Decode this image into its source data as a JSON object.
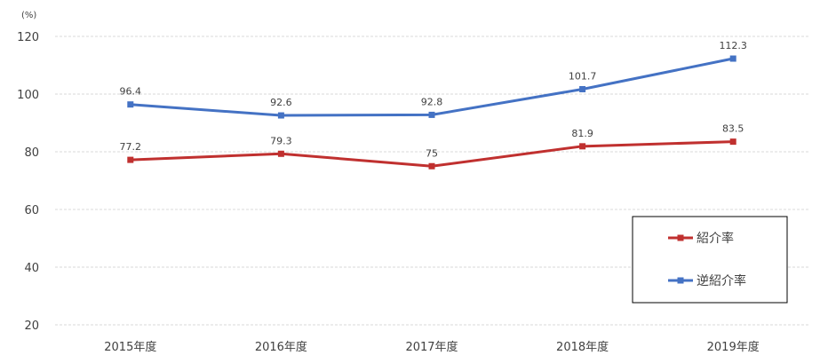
{
  "chart_data": {
    "type": "line",
    "categories": [
      "2015年度",
      "2016年度",
      "2017年度",
      "2018年度",
      "2019年度"
    ],
    "y_unit": "(%)",
    "ylim": [
      20,
      120
    ],
    "yticks": [
      20,
      40,
      60,
      80,
      100,
      120
    ],
    "grid": true,
    "legend_position": "bottom-right",
    "series": [
      {
        "name": "紹介率",
        "color": "#c0302f",
        "values": [
          77.2,
          79.3,
          75,
          81.9,
          83.5
        ],
        "labels": [
          "77.2",
          "79.3",
          "75",
          "81.9",
          "83.5"
        ]
      },
      {
        "name": "逆紹介率",
        "color": "#4472c4",
        "values": [
          96.4,
          92.6,
          92.8,
          101.7,
          112.3
        ],
        "labels": [
          "96.4",
          "92.6",
          "92.8",
          "101.7",
          "112.3"
        ]
      }
    ]
  }
}
